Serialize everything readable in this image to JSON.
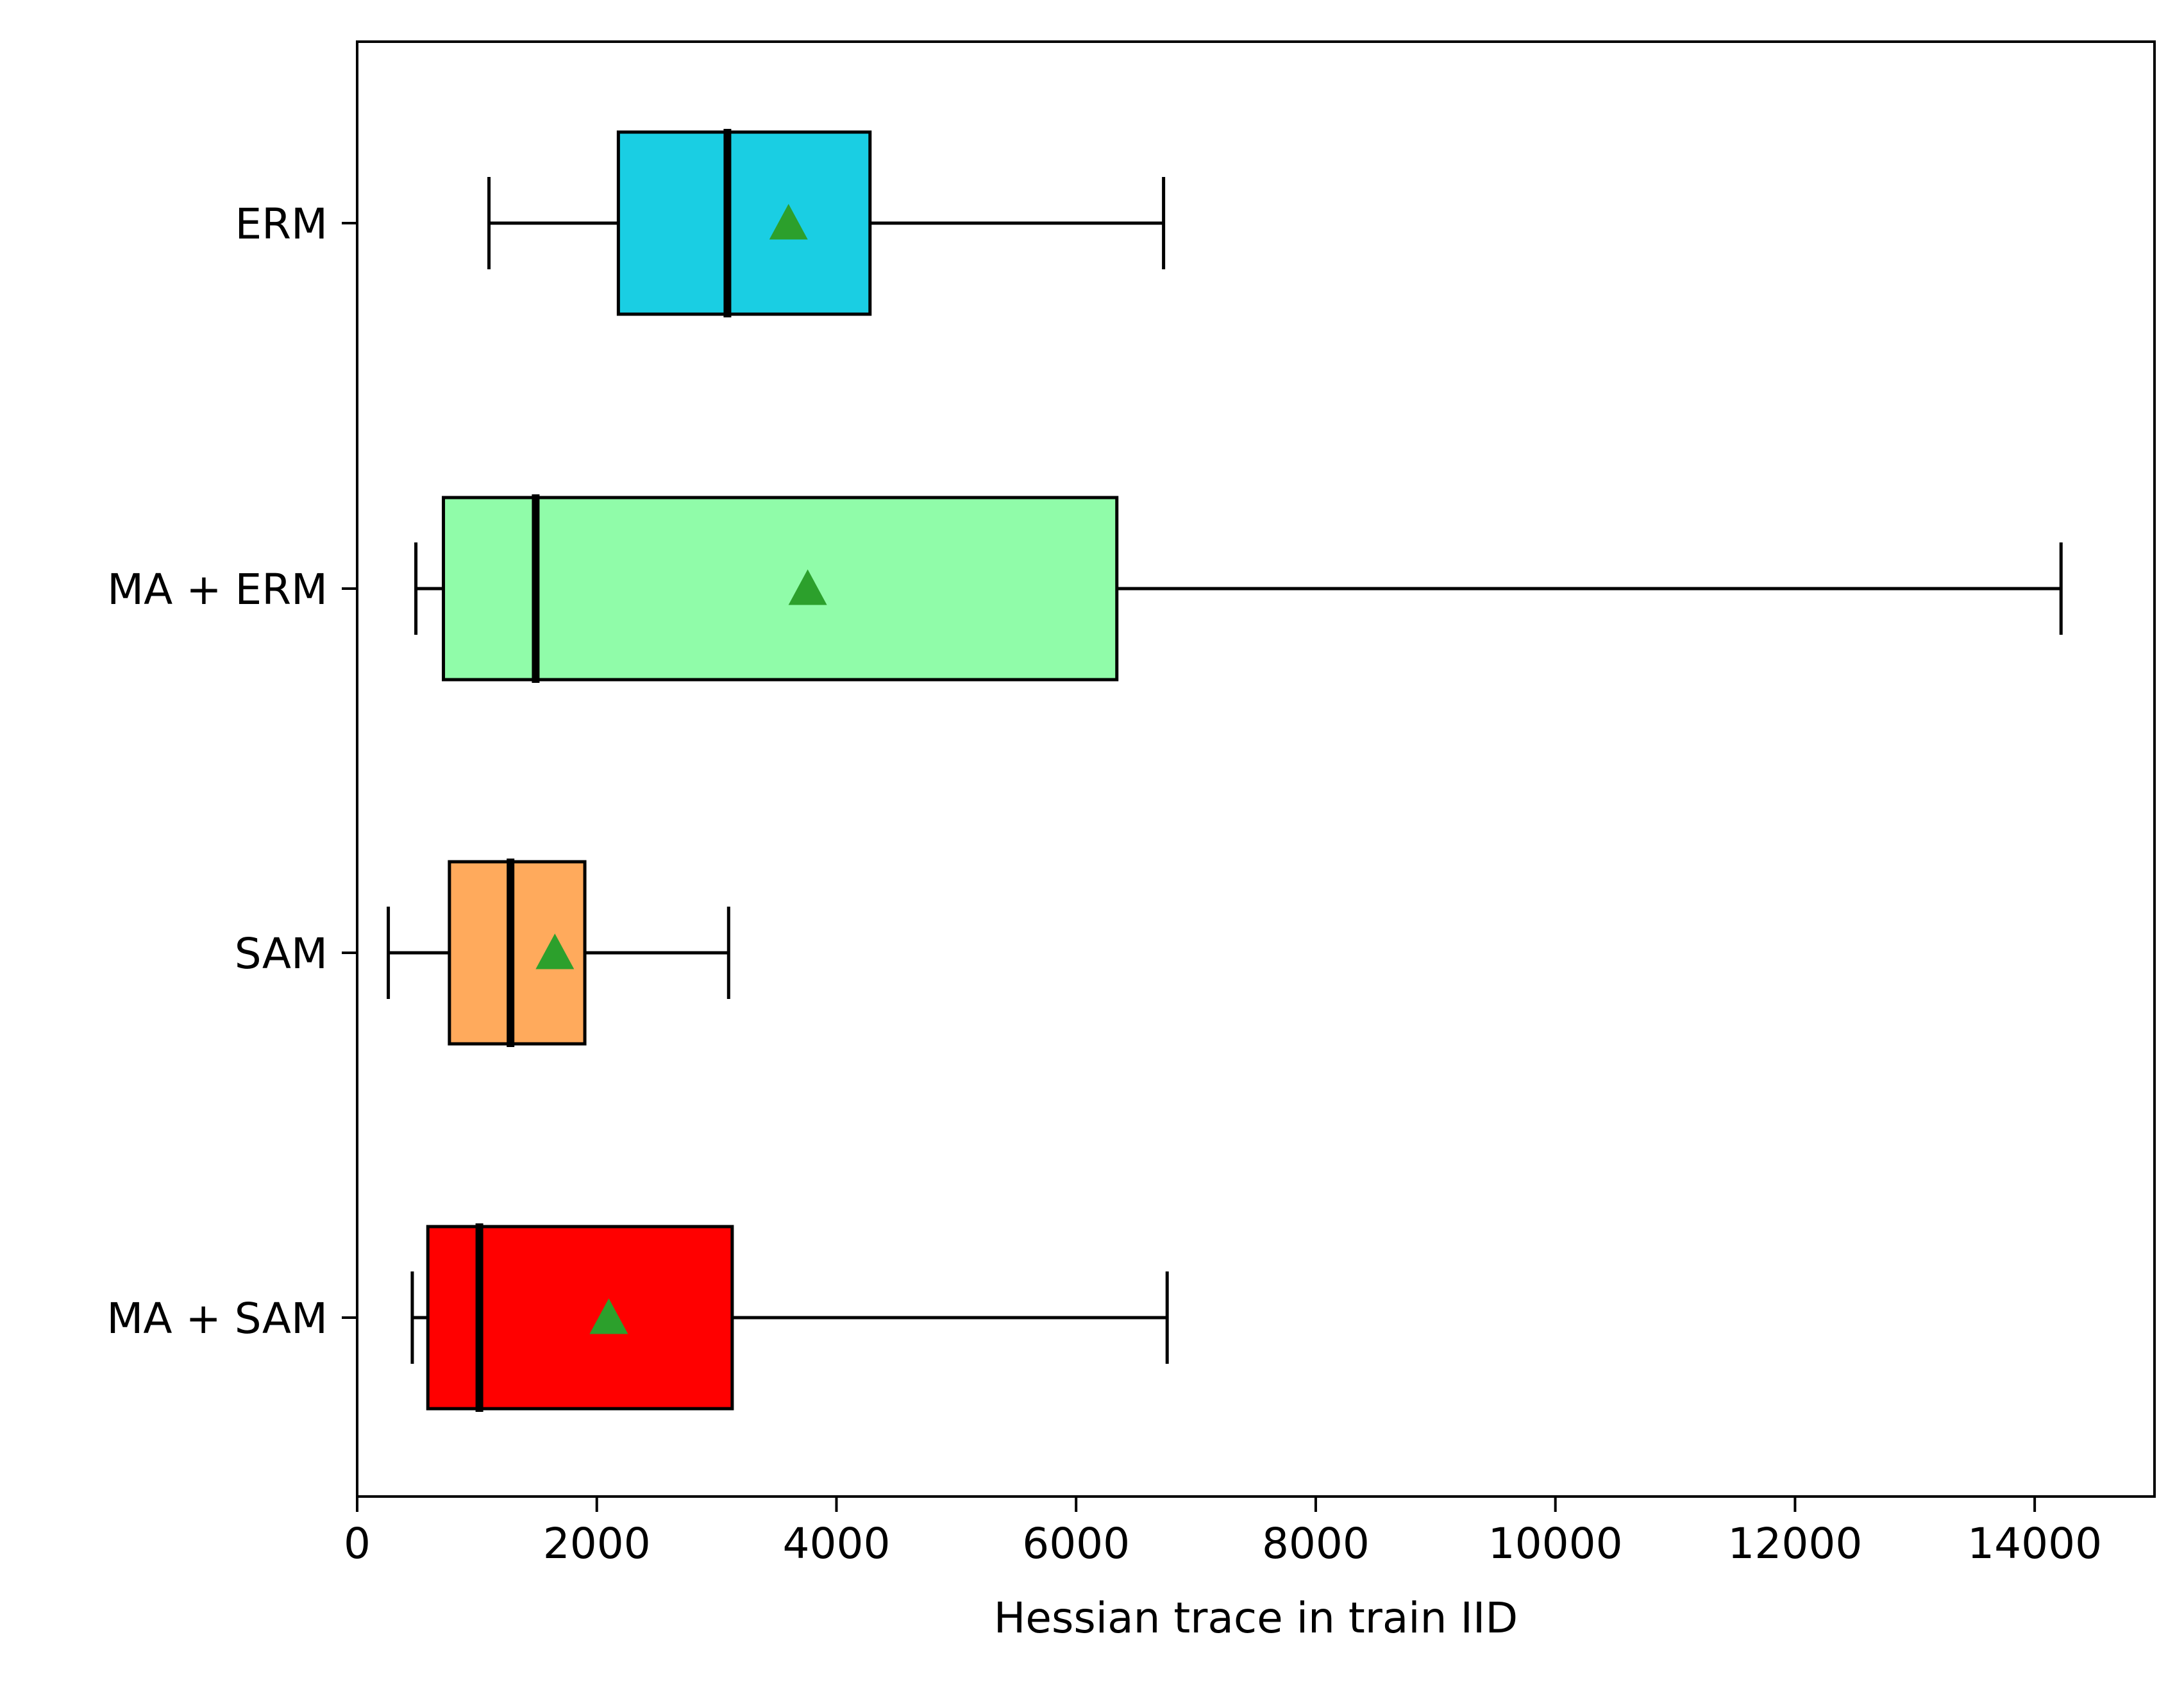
{
  "chart_data": {
    "type": "boxplot",
    "orientation": "horizontal",
    "title": "",
    "xlabel": "Hessian trace in train IID",
    "ylabel": "",
    "xlim": [
      0,
      15000
    ],
    "xticks": [
      0,
      2000,
      4000,
      6000,
      8000,
      10000,
      12000,
      14000
    ],
    "xtick_labels": [
      "0",
      "2000",
      "4000",
      "6000",
      "8000",
      "10000",
      "12000",
      "14000"
    ],
    "grid": false,
    "legend": "none",
    "mean_marker": "triangle",
    "mean_color": "#2ca02c",
    "series": [
      {
        "label": "ERM",
        "color": "#1ACEE3",
        "whisker_low": 1100,
        "q1": 2180,
        "median": 3090,
        "q3": 4280,
        "whisker_high": 6730,
        "mean": 3600
      },
      {
        "label": "MA + ERM",
        "color": "#90FCA9",
        "whisker_low": 490,
        "q1": 720,
        "median": 1490,
        "q3": 6340,
        "whisker_high": 14220,
        "mean": 3760
      },
      {
        "label": "SAM",
        "color": "#FFAA5C",
        "whisker_low": 260,
        "q1": 770,
        "median": 1280,
        "q3": 1900,
        "whisker_high": 3100,
        "mean": 1650
      },
      {
        "label": "MA + SAM",
        "color": "#FF0000",
        "whisker_low": 460,
        "q1": 590,
        "median": 1020,
        "q3": 3130,
        "whisker_high": 6760,
        "mean": 2100
      }
    ]
  }
}
